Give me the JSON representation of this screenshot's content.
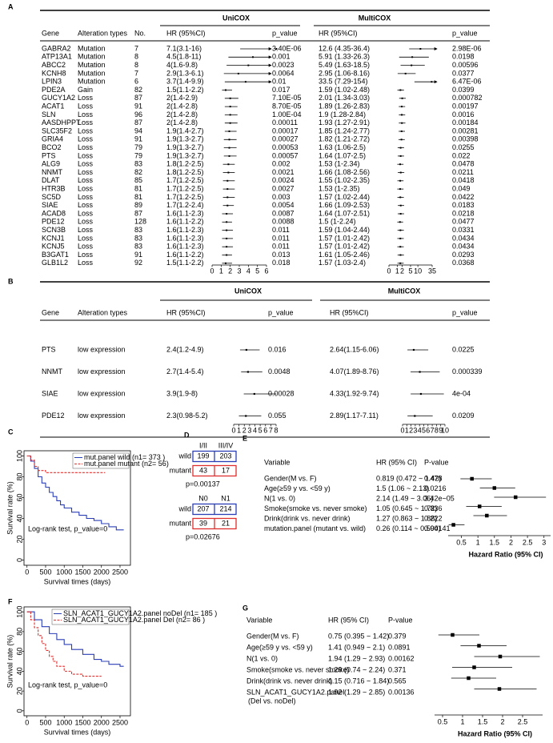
{
  "panel_a": {
    "label": "A",
    "uni_title": "UniCOX",
    "multi_title": "MultiCOX",
    "columns": [
      "Gene",
      "Alteration types",
      "No.",
      "HR (95%CI)",
      "p_value",
      "HR (95%CI)",
      "p_value"
    ],
    "rows": [
      {
        "gene": "GABRA2",
        "alteration": "Mutation",
        "no": 7,
        "uni_hr": "7.1(3.1-16)",
        "uni_p": "3.40E-06",
        "multi_hr": "12.6 (4.35-36.4)",
        "multi_p": "2.98E-06",
        "uni_ci": [
          7.1,
          3.1,
          16
        ],
        "multi_ci": [
          12.6,
          4.35,
          36.4
        ]
      },
      {
        "gene": "ATP13A1",
        "alteration": "Mutation",
        "no": 8,
        "uni_hr": "4.5(1.8-11)",
        "uni_p": "0.001",
        "multi_hr": "5.91 (1.33-26.3)",
        "multi_p": "0.0198",
        "uni_ci": [
          4.5,
          1.8,
          11
        ],
        "multi_ci": [
          5.91,
          1.33,
          26.3
        ]
      },
      {
        "gene": "ABCC2",
        "alteration": "Mutation",
        "no": 8,
        "uni_hr": "4(1.6-9.8)",
        "uni_p": "0.0023",
        "multi_hr": "5.49 (1.63-18.5)",
        "multi_p": "0.00596",
        "uni_ci": [
          4,
          1.6,
          9.8
        ],
        "multi_ci": [
          5.49,
          1.63,
          18.5
        ]
      },
      {
        "gene": "KCNH8",
        "alteration": "Mutation",
        "no": 7,
        "uni_hr": "2.9(1.3-6.1)",
        "uni_p": "0.0064",
        "multi_hr": "2.95 (1.06-8.16)",
        "multi_p": "0.0377",
        "uni_ci": [
          2.9,
          1.3,
          6.1
        ],
        "multi_ci": [
          2.95,
          1.06,
          8.16
        ]
      },
      {
        "gene": "LPIN3",
        "alteration": "Mutation",
        "no": 6,
        "uni_hr": "3.7(1.4-9.9)",
        "uni_p": "0.01",
        "multi_hr": "33.5 (7.29-154)",
        "multi_p": "6.47E-06",
        "uni_ci": [
          3.7,
          1.4,
          9.9
        ],
        "multi_ci": [
          33.5,
          7.29,
          154
        ]
      },
      {
        "gene": "PDE2A",
        "alteration": "Gain",
        "no": 82,
        "uni_hr": "1.5(1.1-2.2)",
        "uni_p": "0.017",
        "multi_hr": "1.59 (1.02-2.48)",
        "multi_p": "0.0399",
        "uni_ci": [
          1.5,
          1.1,
          2.2
        ],
        "multi_ci": [
          1.59,
          1.02,
          2.48
        ]
      },
      {
        "gene": "GUCY1A2",
        "alteration": "Loss",
        "no": 87,
        "uni_hr": "2(1.4-2.9)",
        "uni_p": "7.10E-05",
        "multi_hr": "2.01 (1.34-3.03)",
        "multi_p": "0.000782",
        "uni_ci": [
          2,
          1.4,
          2.9
        ],
        "multi_ci": [
          2.01,
          1.34,
          3.03
        ]
      },
      {
        "gene": "ACAT1",
        "alteration": "Loss",
        "no": 91,
        "uni_hr": "2(1.4-2.8)",
        "uni_p": "8.70E-05",
        "multi_hr": "1.89 (1.26-2.83)",
        "multi_p": "0.00197",
        "uni_ci": [
          2,
          1.4,
          2.8
        ],
        "multi_ci": [
          1.89,
          1.26,
          2.83
        ]
      },
      {
        "gene": "SLN",
        "alteration": "Loss",
        "no": 96,
        "uni_hr": "2(1.4-2.8)",
        "uni_p": "1.00E-04",
        "multi_hr": "1.9 (1.28-2.84)",
        "multi_p": "0.0016",
        "uni_ci": [
          2,
          1.4,
          2.8
        ],
        "multi_ci": [
          1.9,
          1.28,
          2.84
        ]
      },
      {
        "gene": "AASDHPPT",
        "alteration": "Loss",
        "no": 87,
        "uni_hr": "2(1.4-2.8)",
        "uni_p": "0.00011",
        "multi_hr": "1.93 (1.27-2.91)",
        "multi_p": "0.00184",
        "uni_ci": [
          2,
          1.4,
          2.8
        ],
        "multi_ci": [
          1.93,
          1.27,
          2.91
        ]
      },
      {
        "gene": "SLC35F2",
        "alteration": "Loss",
        "no": 94,
        "uni_hr": "1.9(1.4-2.7)",
        "uni_p": "0.00017",
        "multi_hr": "1.85 (1.24-2.77)",
        "multi_p": "0.00281",
        "uni_ci": [
          1.9,
          1.4,
          2.7
        ],
        "multi_ci": [
          1.85,
          1.24,
          2.77
        ]
      },
      {
        "gene": "GRIA4",
        "alteration": "Loss",
        "no": 91,
        "uni_hr": "1.9(1.3-2.7)",
        "uni_p": "0.00027",
        "multi_hr": "1.82 (1.21-2.72)",
        "multi_p": "0.00398",
        "uni_ci": [
          1.9,
          1.3,
          2.7
        ],
        "multi_ci": [
          1.82,
          1.21,
          2.72
        ]
      },
      {
        "gene": "BCO2",
        "alteration": "Loss",
        "no": 79,
        "uni_hr": "1.9(1.3-2.7)",
        "uni_p": "0.00053",
        "multi_hr": "1.63 (1.06-2.5)",
        "multi_p": "0.0255",
        "uni_ci": [
          1.9,
          1.3,
          2.7
        ],
        "multi_ci": [
          1.63,
          1.06,
          2.5
        ]
      },
      {
        "gene": "PTS",
        "alteration": "Loss",
        "no": 79,
        "uni_hr": "1.9(1.3-2.7)",
        "uni_p": "0.00057",
        "multi_hr": "1.64 (1.07-2.5)",
        "multi_p": "0.022",
        "uni_ci": [
          1.9,
          1.3,
          2.7
        ],
        "multi_ci": [
          1.64,
          1.07,
          2.5
        ]
      },
      {
        "gene": "ALG9",
        "alteration": "Loss",
        "no": 83,
        "uni_hr": "1.8(1.2-2.5)",
        "uni_p": "0.002",
        "multi_hr": "1.53 (1-2.34)",
        "multi_p": "0.0478",
        "uni_ci": [
          1.8,
          1.2,
          2.5
        ],
        "multi_ci": [
          1.53,
          1,
          2.34
        ]
      },
      {
        "gene": "NNMT",
        "alteration": "Loss",
        "no": 82,
        "uni_hr": "1.8(1.2-2.5)",
        "uni_p": "0.0021",
        "multi_hr": "1.66 (1.08-2.56)",
        "multi_p": "0.0211",
        "uni_ci": [
          1.8,
          1.2,
          2.5
        ],
        "multi_ci": [
          1.66,
          1.08,
          2.56
        ]
      },
      {
        "gene": "DLAT",
        "alteration": "Loss",
        "no": 85,
        "uni_hr": "1.7(1.2-2.5)",
        "uni_p": "0.0024",
        "multi_hr": "1.55 (1.02-2.35)",
        "multi_p": "0.0418",
        "uni_ci": [
          1.7,
          1.2,
          2.5
        ],
        "multi_ci": [
          1.55,
          1.02,
          2.35
        ]
      },
      {
        "gene": "HTR3B",
        "alteration": "Loss",
        "no": 81,
        "uni_hr": "1.7(1.2-2.5)",
        "uni_p": "0.0027",
        "multi_hr": "1.53 (1-2.35)",
        "multi_p": "0.049",
        "uni_ci": [
          1.7,
          1.2,
          2.5
        ],
        "multi_ci": [
          1.53,
          1,
          2.35
        ]
      },
      {
        "gene": "SC5D",
        "alteration": "Loss",
        "no": 81,
        "uni_hr": "1.7(1.2-2.5)",
        "uni_p": "0.003",
        "multi_hr": "1.57 (1.02-2.44)",
        "multi_p": "0.0422",
        "uni_ci": [
          1.7,
          1.2,
          2.5
        ],
        "multi_ci": [
          1.57,
          1.02,
          2.44
        ]
      },
      {
        "gene": "SIAE",
        "alteration": "Loss",
        "no": 89,
        "uni_hr": "1.7(1.2-2.4)",
        "uni_p": "0.0054",
        "multi_hr": "1.66 (1.09-2.53)",
        "multi_p": "0.0183",
        "uni_ci": [
          1.7,
          1.2,
          2.4
        ],
        "multi_ci": [
          1.66,
          1.09,
          2.53
        ]
      },
      {
        "gene": "ACAD8",
        "alteration": "Loss",
        "no": 87,
        "uni_hr": "1.6(1.1-2.3)",
        "uni_p": "0.0087",
        "multi_hr": "1.64 (1.07-2.51)",
        "multi_p": "0.0218",
        "uni_ci": [
          1.6,
          1.1,
          2.3
        ],
        "multi_ci": [
          1.64,
          1.07,
          2.51
        ]
      },
      {
        "gene": "PDE12",
        "alteration": "Loss",
        "no": 128,
        "uni_hr": "1.6(1.1-2.2)",
        "uni_p": "0.0088",
        "multi_hr": "1.5 (1-2.24)",
        "multi_p": "0.0477",
        "uni_ci": [
          1.6,
          1.1,
          2.2
        ],
        "multi_ci": [
          1.5,
          1,
          2.24
        ]
      },
      {
        "gene": "SCN3B",
        "alteration": "Loss",
        "no": 83,
        "uni_hr": "1.6(1.1-2.3)",
        "uni_p": "0.011",
        "multi_hr": "1.59 (1.04-2.44)",
        "multi_p": "0.0331",
        "uni_ci": [
          1.6,
          1.1,
          2.3
        ],
        "multi_ci": [
          1.59,
          1.04,
          2.44
        ]
      },
      {
        "gene": "KCNJ1",
        "alteration": "Loss",
        "no": 83,
        "uni_hr": "1.6(1.1-2.3)",
        "uni_p": "0.011",
        "multi_hr": "1.57 (1.01-2.42)",
        "multi_p": "0.0434",
        "uni_ci": [
          1.6,
          1.1,
          2.3
        ],
        "multi_ci": [
          1.57,
          1.01,
          2.42
        ]
      },
      {
        "gene": "KCNJ5",
        "alteration": "Loss",
        "no": 83,
        "uni_hr": "1.6(1.1-2.3)",
        "uni_p": "0.011",
        "multi_hr": "1.57 (1.01-2.42)",
        "multi_p": "0.0434",
        "uni_ci": [
          1.6,
          1.1,
          2.3
        ],
        "multi_ci": [
          1.57,
          1.01,
          2.42
        ]
      },
      {
        "gene": "B3GAT1",
        "alteration": "Loss",
        "no": 91,
        "uni_hr": "1.6(1.1-2.2)",
        "uni_p": "0.013",
        "multi_hr": "1.61 (1.05-2.46)",
        "multi_p": "0.0293",
        "uni_ci": [
          1.6,
          1.1,
          2.2
        ],
        "multi_ci": [
          1.61,
          1.05,
          2.46
        ]
      },
      {
        "gene": "GLB1L2",
        "alteration": "Loss",
        "no": 92,
        "uni_hr": "1.5(1.1-2.2)",
        "uni_p": "0.018",
        "multi_hr": "1.57 (1.03-2.4)",
        "multi_p": "0.0368",
        "uni_ci": [
          1.5,
          1.1,
          2.2
        ],
        "multi_ci": [
          1.57,
          1.03,
          2.4
        ]
      }
    ],
    "uni_axis": {
      "xlim": [
        0,
        6
      ],
      "xticks": [
        0,
        1,
        2,
        3,
        4,
        5,
        6
      ]
    },
    "multi_axis": {
      "xlim": [
        0,
        35
      ],
      "xticks": [
        0,
        1,
        2,
        5,
        10,
        35
      ]
    }
  },
  "panel_b": {
    "label": "B",
    "uni_title": "UniCOX",
    "multi_title": "MultiCOX",
    "columns": [
      "Gene",
      "Alteration types",
      "HR (95%CI)",
      "p_value",
      "HR (95%CI)",
      "p_value"
    ],
    "rows": [
      {
        "gene": "PTS",
        "alteration": "low expression",
        "uni_hr": "2.4(1.2-4.9)",
        "uni_p": "0.016",
        "multi_hr": "2.64(1.15-6.06)",
        "multi_p": "0.0225",
        "uni_ci": [
          2.4,
          1.2,
          4.9
        ],
        "multi_ci": [
          2.64,
          1.15,
          6.06
        ]
      },
      {
        "gene": "NNMT",
        "alteration": "low expression",
        "uni_hr": "2.7(1.4-5.4)",
        "uni_p": "0.0048",
        "multi_hr": "4.07(1.89-8.76)",
        "multi_p": "0.000339",
        "uni_ci": [
          2.7,
          1.4,
          5.4
        ],
        "multi_ci": [
          4.07,
          1.89,
          8.76
        ]
      },
      {
        "gene": "SIAE",
        "alteration": "low expression",
        "uni_hr": "3.9(1.9-8)",
        "uni_p": "0.00028",
        "multi_hr": "4.33(1.92-9.74)",
        "multi_p": "4e-04",
        "uni_ci": [
          3.9,
          1.9,
          8
        ],
        "multi_ci": [
          4.33,
          1.92,
          9.74
        ]
      },
      {
        "gene": "PDE12",
        "alteration": "low expression",
        "uni_hr": "2.3(0.98-5.2)",
        "uni_p": "0.055",
        "multi_hr": "2.89(1.17-7.11)",
        "multi_p": "0.0209",
        "uni_ci": [
          2.3,
          0.98,
          5.2
        ],
        "multi_ci": [
          2.89,
          1.17,
          7.11
        ]
      }
    ],
    "uni_axis": {
      "xlim": [
        0,
        8
      ],
      "xticks": [
        0,
        1,
        2,
        3,
        4,
        5,
        6,
        7,
        8
      ]
    },
    "multi_axis": {
      "xlim": [
        0,
        10
      ],
      "xticks": [
        0,
        1,
        2,
        3,
        4,
        5,
        6,
        7,
        8,
        9,
        10
      ]
    }
  },
  "panel_c": {
    "label": "C",
    "type": "line",
    "xlabel": "Survival times (days)",
    "ylabel": "Survival rate (%)",
    "annotation": "Log-rank test, p_value=0",
    "xlim": [
      -80,
      2780
    ],
    "ylim": [
      -5,
      105
    ],
    "xticks": [
      0,
      500,
      1000,
      1500,
      2000,
      2500
    ],
    "yticks": [
      0,
      20,
      40,
      60,
      80,
      100
    ],
    "series": [
      {
        "name": "mut.panel wild (n1= 373 )",
        "color": "#2b3fb5",
        "linestyle": "solid",
        "x": [
          0,
          100,
          200,
          300,
          400,
          500,
          600,
          700,
          800,
          900,
          1000,
          1200,
          1400,
          1600,
          1800,
          2000,
          2200,
          2400,
          2600
        ],
        "values": [
          100,
          95,
          88,
          80,
          74,
          70,
          65,
          61,
          57,
          53,
          50,
          46,
          43,
          40,
          38,
          35,
          32,
          29,
          29
        ]
      },
      {
        "name": "mut.panel mutant (n2= 56)",
        "color": "#e0302e",
        "linestyle": "dashed",
        "x": [
          0,
          100,
          200,
          300,
          500,
          1000,
          1500,
          2100
        ],
        "values": [
          100,
          96,
          90,
          86,
          84,
          84,
          84,
          84
        ]
      }
    ]
  },
  "panel_d": {
    "label": "D",
    "tables": [
      {
        "columns": [
          "I/II",
          "III/IV"
        ],
        "rows": [
          {
            "name": "wild",
            "color": "#2b3fb5",
            "values": [
              199,
              203
            ]
          },
          {
            "name": "mutant",
            "color": "#e0302e",
            "values": [
              43,
              17
            ]
          }
        ],
        "p": "p=0.00137"
      },
      {
        "columns": [
          "N0",
          "N1"
        ],
        "rows": [
          {
            "name": "wild",
            "color": "#2b3fb5",
            "values": [
              207,
              214
            ]
          },
          {
            "name": "mutant",
            "color": "#e0302e",
            "values": [
              39,
              21
            ]
          }
        ],
        "p": "p=0.02676"
      }
    ]
  },
  "panel_e": {
    "label": "E",
    "columns": [
      "Variable",
      "HR (95% CI)",
      "P-value"
    ],
    "rows": [
      {
        "variable": "Gender(M vs. F)",
        "hr": "0.819 (0.472 ~ 1.42)",
        "p": "0.478",
        "ci": [
          0.819,
          0.472,
          1.42
        ]
      },
      {
        "variable": "Age(≥59 y vs. <59 y)",
        "hr": "1.5 (1.06 ~ 2.13)",
        "p": "0.0216",
        "ci": [
          1.5,
          1.06,
          2.13
        ]
      },
      {
        "variable": "N(1 vs. 0)",
        "hr": "2.14 (1.49 ~ 3.06)",
        "p": "3.42e−05",
        "ci": [
          2.14,
          1.49,
          3.06
        ]
      },
      {
        "variable": "Smoke(smoke vs. never smoke)",
        "hr": "1.05 (0.645 ~ 1.72)",
        "p": "0.836",
        "ci": [
          1.05,
          0.645,
          1.72
        ]
      },
      {
        "variable": "Drink(drink vs. never drink)",
        "hr": "1.27 (0.863 ~ 1.88)",
        "p": "0.222",
        "ci": [
          1.27,
          0.863,
          1.88
        ]
      },
      {
        "variable": "mutation.panel (mutant vs. wild)",
        "hr": "0.26 (0.114 ~ 0.594)",
        "p": "0.00141",
        "ci": [
          0.26,
          0.114,
          0.594
        ]
      }
    ],
    "xlim": [
      0.1,
      3.2
    ],
    "xticks": [
      0.5,
      1,
      1.5,
      2,
      2.5,
      3
    ],
    "xlabel": "Hazard Ratio (95% CI)"
  },
  "panel_f": {
    "label": "F",
    "type": "line",
    "xlabel": "Survival times (days)",
    "ylabel": "Survival rate (%)",
    "annotation": "Log-rank test, p_value=0",
    "xlim": [
      -80,
      2780
    ],
    "ylim": [
      -5,
      105
    ],
    "xticks": [
      0,
      500,
      1000,
      1500,
      2000,
      2500
    ],
    "yticks": [
      0,
      20,
      40,
      60,
      80,
      100
    ],
    "series": [
      {
        "name": "SLN_ACAT1_GUCY1A2.panel noDel (n1= 185 )",
        "color": "#2b3fb5",
        "linestyle": "solid",
        "x": [
          0,
          200,
          400,
          600,
          800,
          1000,
          1200,
          1500,
          1800,
          2000,
          2200,
          2500,
          2600
        ],
        "values": [
          100,
          92,
          85,
          78,
          72,
          67,
          62,
          57,
          52,
          50,
          47,
          45,
          45
        ]
      },
      {
        "name": "SLN_ACAT1_GUCY1A2.panel Del (n2= 86 )",
        "color": "#e0302e",
        "linestyle": "dashed",
        "x": [
          0,
          100,
          200,
          300,
          400,
          500,
          600,
          700,
          800,
          1000,
          1200,
          1500,
          1800,
          2000
        ],
        "values": [
          100,
          92,
          84,
          76,
          68,
          61,
          55,
          50,
          45,
          40,
          37,
          35,
          35,
          35
        ]
      }
    ]
  },
  "panel_g": {
    "label": "G",
    "columns": [
      "Variable",
      "HR (95% CI)",
      "P-value"
    ],
    "rows": [
      {
        "variable": "Gender(M vs. F)",
        "hr": "0.75 (0.395 ~ 1.42)",
        "p": "0.379",
        "ci": [
          0.75,
          0.395,
          1.42
        ]
      },
      {
        "variable": "Age(≥59 y vs. <59 y)",
        "hr": "1.41 (0.949 ~ 2.1)",
        "p": "0.0891",
        "ci": [
          1.41,
          0.949,
          2.1
        ]
      },
      {
        "variable": "N(1 vs. 0)",
        "hr": "1.94 (1.29 ~ 2.93)",
        "p": "0.00162",
        "ci": [
          1.94,
          1.29,
          2.93
        ]
      },
      {
        "variable": "Smoke(smoke vs. never smoke)",
        "hr": "1.29 (0.74 ~ 2.24)",
        "p": "0.371",
        "ci": [
          1.29,
          0.74,
          2.24
        ]
      },
      {
        "variable": "Drink(drink vs. never drink)",
        "hr": "1.15 (0.716 ~ 1.84)",
        "p": "0.565",
        "ci": [
          1.15,
          0.716,
          1.84
        ]
      },
      {
        "variable": "SLN_ACAT1_GUCY1A2.panel",
        "note": "(Del vs. noDel)",
        "hr": "1.92 (1.29 ~ 2.85)",
        "p": "0.00136",
        "ci": [
          1.92,
          1.29,
          2.85
        ]
      }
    ],
    "xlim": [
      0.3,
      3.0
    ],
    "xticks": [
      0.5,
      1,
      1.5,
      2,
      2.5
    ],
    "xlabel": "Hazard Ratio (95% CI)"
  }
}
